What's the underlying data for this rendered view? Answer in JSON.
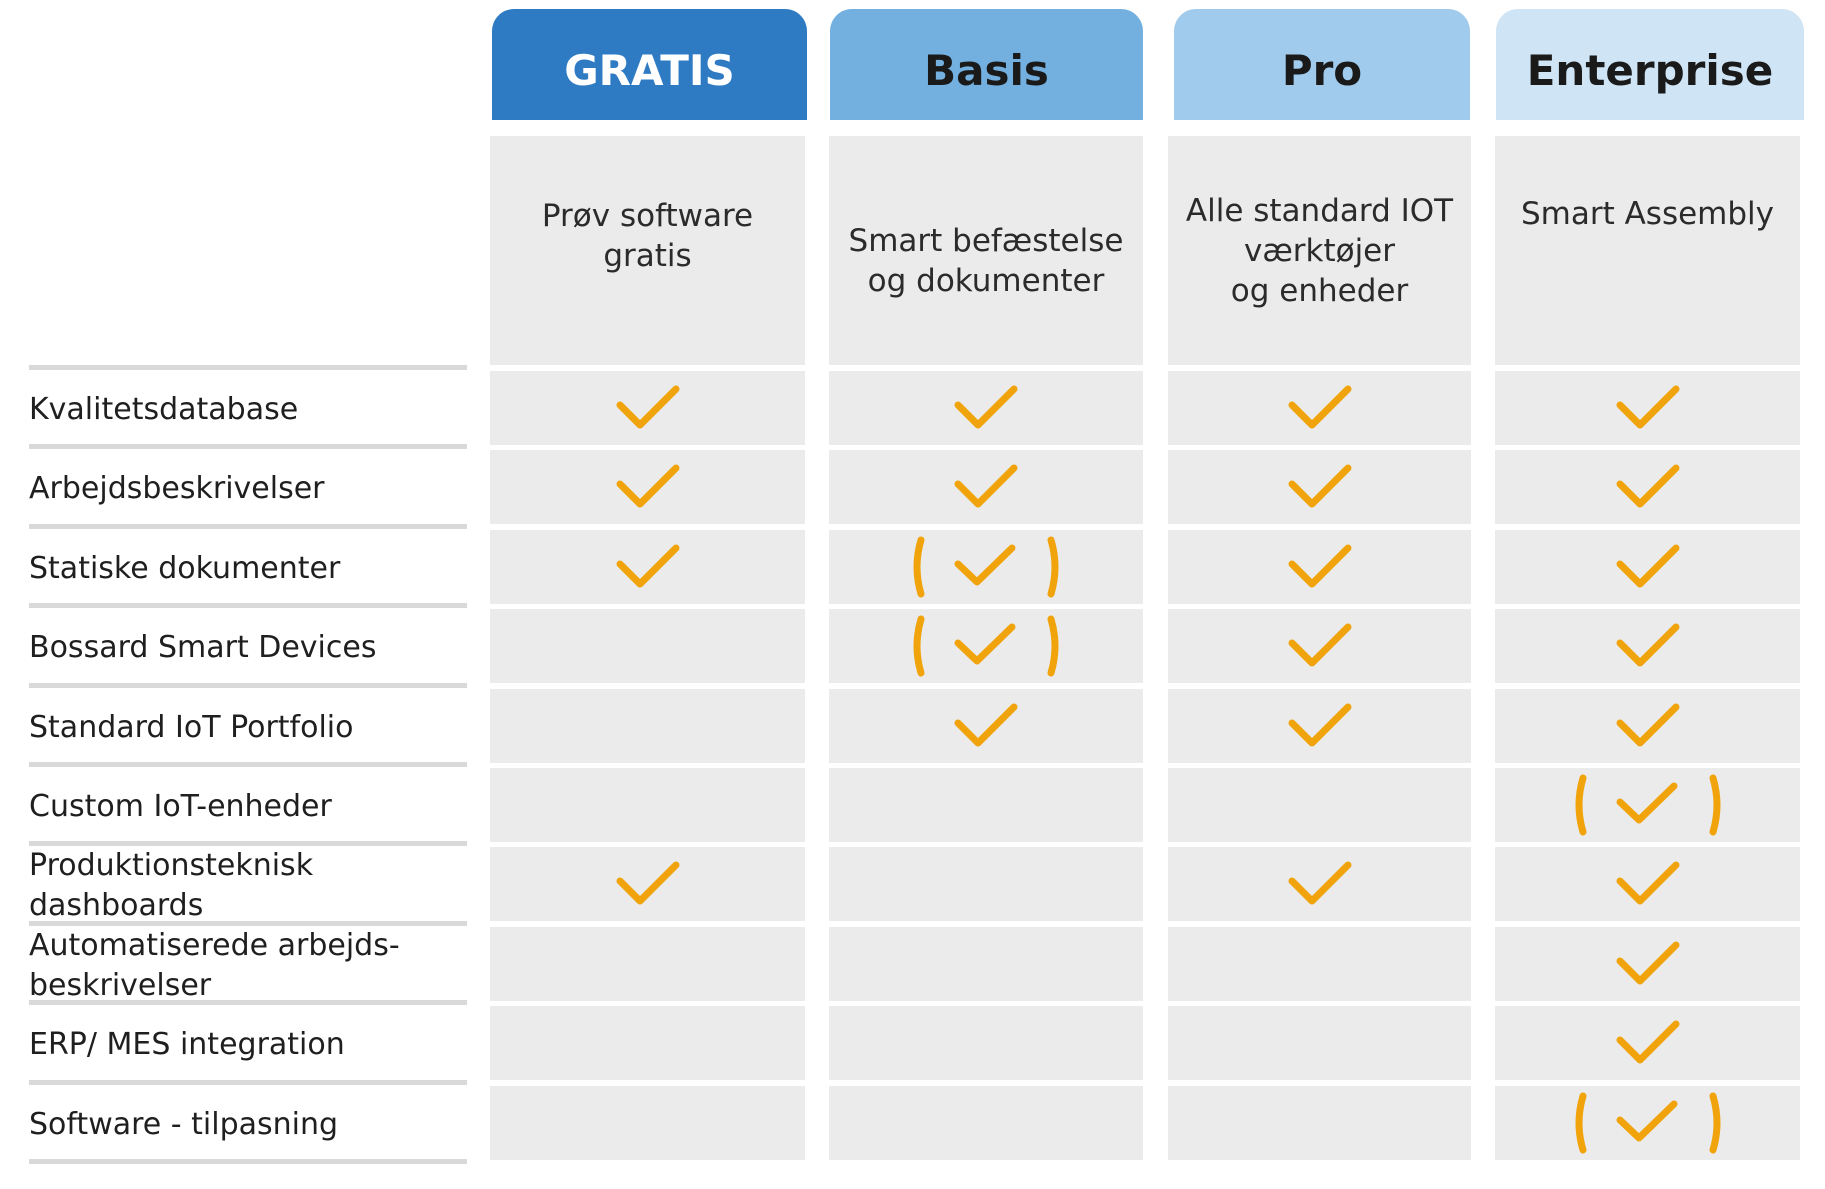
{
  "colors": {
    "check": "#f0a30a",
    "cell_bg": "#ebebeb",
    "row_line": "#d9d9d9"
  },
  "plans": [
    {
      "name": "GRATIS",
      "description": "Prøv software gratis",
      "header_bg": "#2e7bc4",
      "header_fg": "#ffffff"
    },
    {
      "name": "Basis",
      "description": "Smart befæstelse\nog dokumenter",
      "header_bg": "#73b0e0",
      "header_fg": "#1a1a1a"
    },
    {
      "name": "Pro",
      "description": "Alle standard IOT\nværktøjer\nog enheder",
      "header_bg": "#a0cbed",
      "header_fg": "#1a1a1a"
    },
    {
      "name": "Enterprise",
      "description": "Smart Assembly",
      "header_bg": "#cfe4f4",
      "header_fg": "#1a1a1a"
    }
  ],
  "features": [
    {
      "label": "Kvalitetsdatabase",
      "values": [
        "check",
        "check",
        "check",
        "check"
      ]
    },
    {
      "label": "Arbejdsbeskrivelser",
      "values": [
        "check",
        "check",
        "check",
        "check"
      ]
    },
    {
      "label": "Statiske dokumenter",
      "values": [
        "check",
        "partial",
        "check",
        "check"
      ]
    },
    {
      "label": "Bossard Smart Devices",
      "values": [
        "none",
        "partial",
        "check",
        "check"
      ]
    },
    {
      "label": "Standard IoT Portfolio",
      "values": [
        "none",
        "check",
        "check",
        "check"
      ]
    },
    {
      "label": "Custom IoT-enheder",
      "values": [
        "none",
        "none",
        "none",
        "partial"
      ]
    },
    {
      "label": "Produktionsteknisk\ndashboards",
      "values": [
        "check",
        "none",
        "check",
        "check"
      ]
    },
    {
      "label": "Automatiserede arbejds-\nbeskrivelser",
      "values": [
        "none",
        "none",
        "none",
        "check"
      ]
    },
    {
      "label": "ERP/ MES integration",
      "values": [
        "none",
        "none",
        "none",
        "check"
      ]
    },
    {
      "label": "Software - tilpasning",
      "values": [
        "none",
        "none",
        "none",
        "partial"
      ]
    }
  ]
}
